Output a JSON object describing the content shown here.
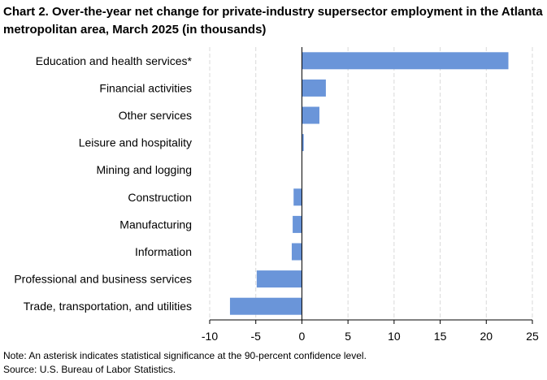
{
  "chart_data": {
    "type": "bar",
    "orientation": "horizontal",
    "title": "Chart 2. Over-the-year net change for private-industry supersector employment in the Atlanta metropolitan area, March 2025 (in thousands)",
    "categories": [
      "Education and health services*",
      "Financial activities",
      "Other services",
      "Leisure and hospitality",
      "Mining and logging",
      "Construction",
      "Manufacturing",
      "Information",
      "Professional and business services",
      "Trade, transportation, and utilities"
    ],
    "values": [
      22.4,
      2.6,
      1.9,
      0.2,
      0,
      -0.9,
      -1.0,
      -1.1,
      -4.9,
      -7.8
    ],
    "xlim": [
      -10,
      25
    ],
    "xticks": [
      "-10",
      "-5",
      "0",
      "5",
      "10",
      "15",
      "20",
      "25"
    ],
    "xtick_values": [
      -10,
      -5,
      0,
      5,
      10,
      15,
      20,
      25
    ],
    "xlabel": "",
    "ylabel": "",
    "grid": "vertical-dashed",
    "bar_color": "#6a95d9",
    "grid_color": "#d9d9d9",
    "axis_color": "#000000"
  },
  "footnotes": {
    "note": "Note: An asterisk indicates statistical significance at the 90-percent confidence level.",
    "source": "Source: U.S. Bureau of Labor Statistics."
  }
}
